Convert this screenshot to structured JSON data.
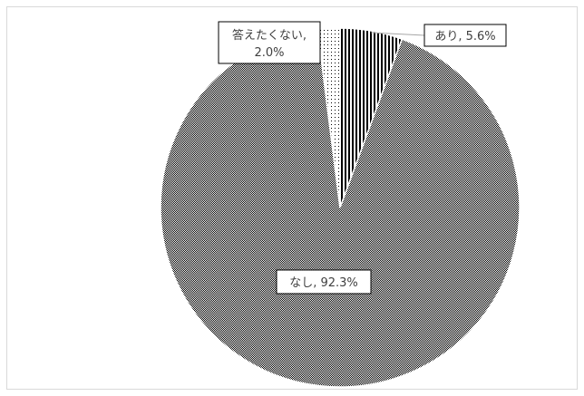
{
  "chart_data": {
    "type": "pie",
    "title": "",
    "categories": [
      "なし",
      "あり",
      "答えたくない"
    ],
    "values": [
      92.3,
      5.6,
      2.0
    ],
    "unit": "%",
    "data_labels": [
      {
        "category": "なし",
        "text": "なし, 92.3%"
      },
      {
        "category": "あり",
        "text": "あり, 5.6%"
      },
      {
        "category": "答えたくない",
        "line1": "答えたくない,",
        "line2": "2.0%"
      }
    ],
    "slice_patterns": {
      "なし": "fine-dots",
      "あり": "vertical-stripes",
      "答えたくない": "sparse-dots"
    },
    "legend": "none",
    "colors": {
      "pattern_ink": "#000000",
      "background": "#ffffff",
      "frame_border": "#d9d9d9",
      "label_text": "#404040"
    }
  }
}
